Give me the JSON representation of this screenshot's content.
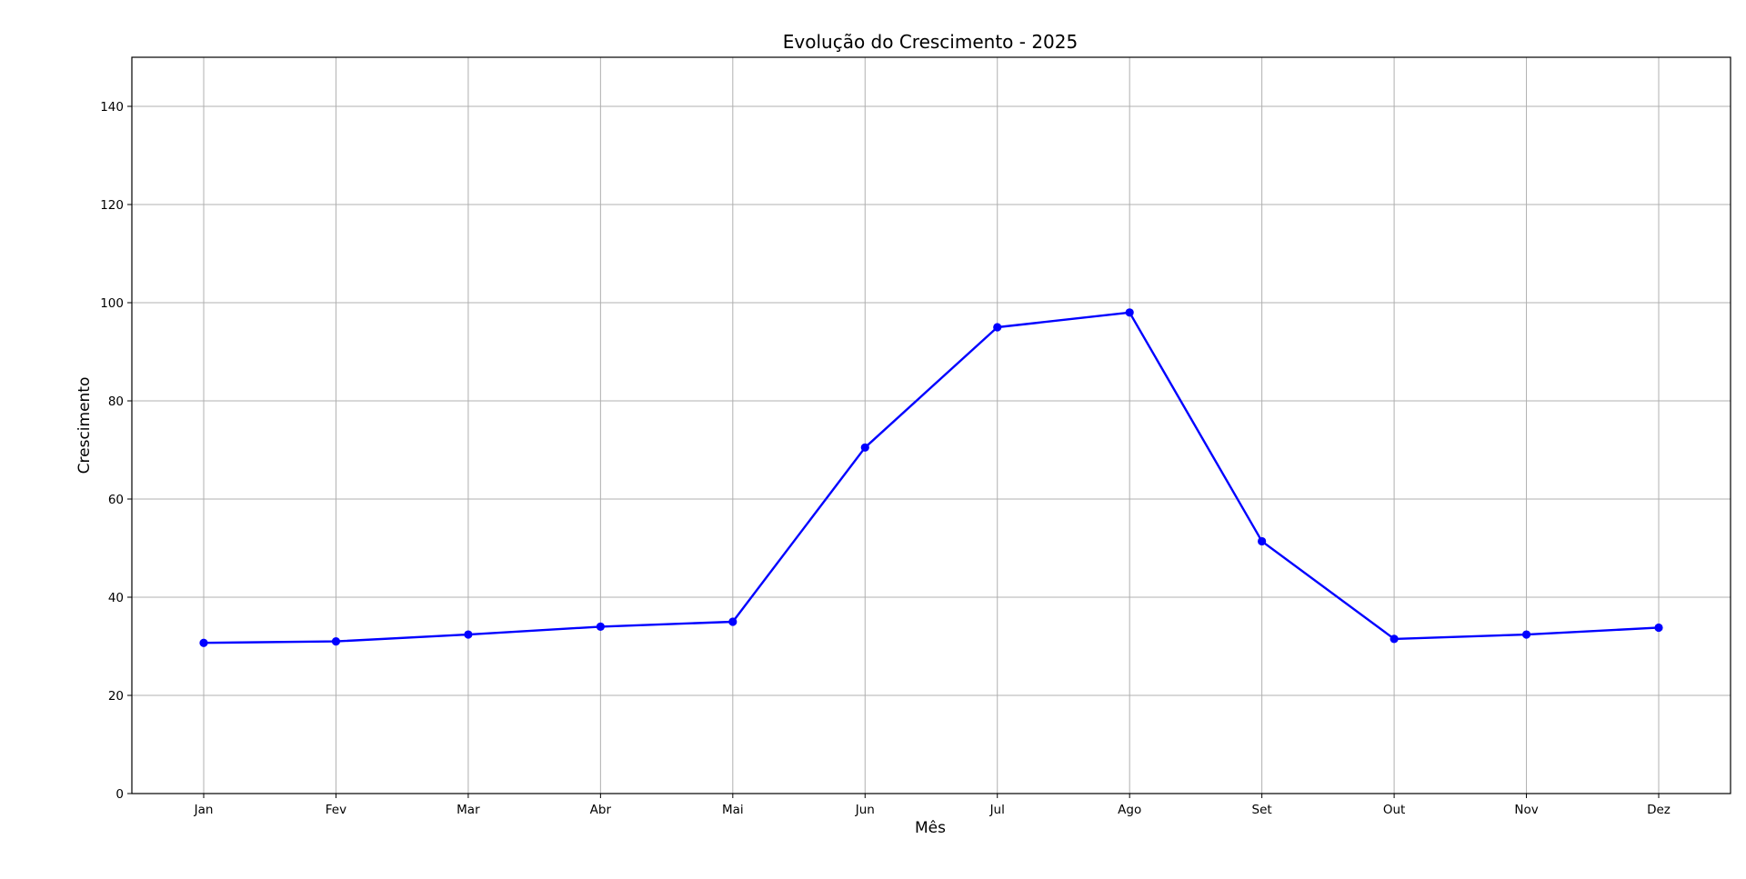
{
  "chart_data": {
    "type": "line",
    "title": "Evolução do Crescimento - 2025",
    "xlabel": "Mês",
    "ylabel": "Crescimento",
    "categories": [
      "Jan",
      "Fev",
      "Mar",
      "Abr",
      "Mai",
      "Jun",
      "Jul",
      "Ago",
      "Set",
      "Out",
      "Nov",
      "Dez"
    ],
    "series": [
      {
        "values": [
          30.7,
          31.0,
          32.4,
          34.0,
          35.0,
          70.5,
          95.0,
          98.0,
          51.4,
          31.5,
          32.4,
          33.8
        ],
        "color": "#0000ff",
        "marker": "circle"
      }
    ],
    "ylim": [
      0,
      150
    ],
    "yticks": [
      0,
      20,
      40,
      60,
      80,
      100,
      120,
      140
    ],
    "grid": true
  }
}
